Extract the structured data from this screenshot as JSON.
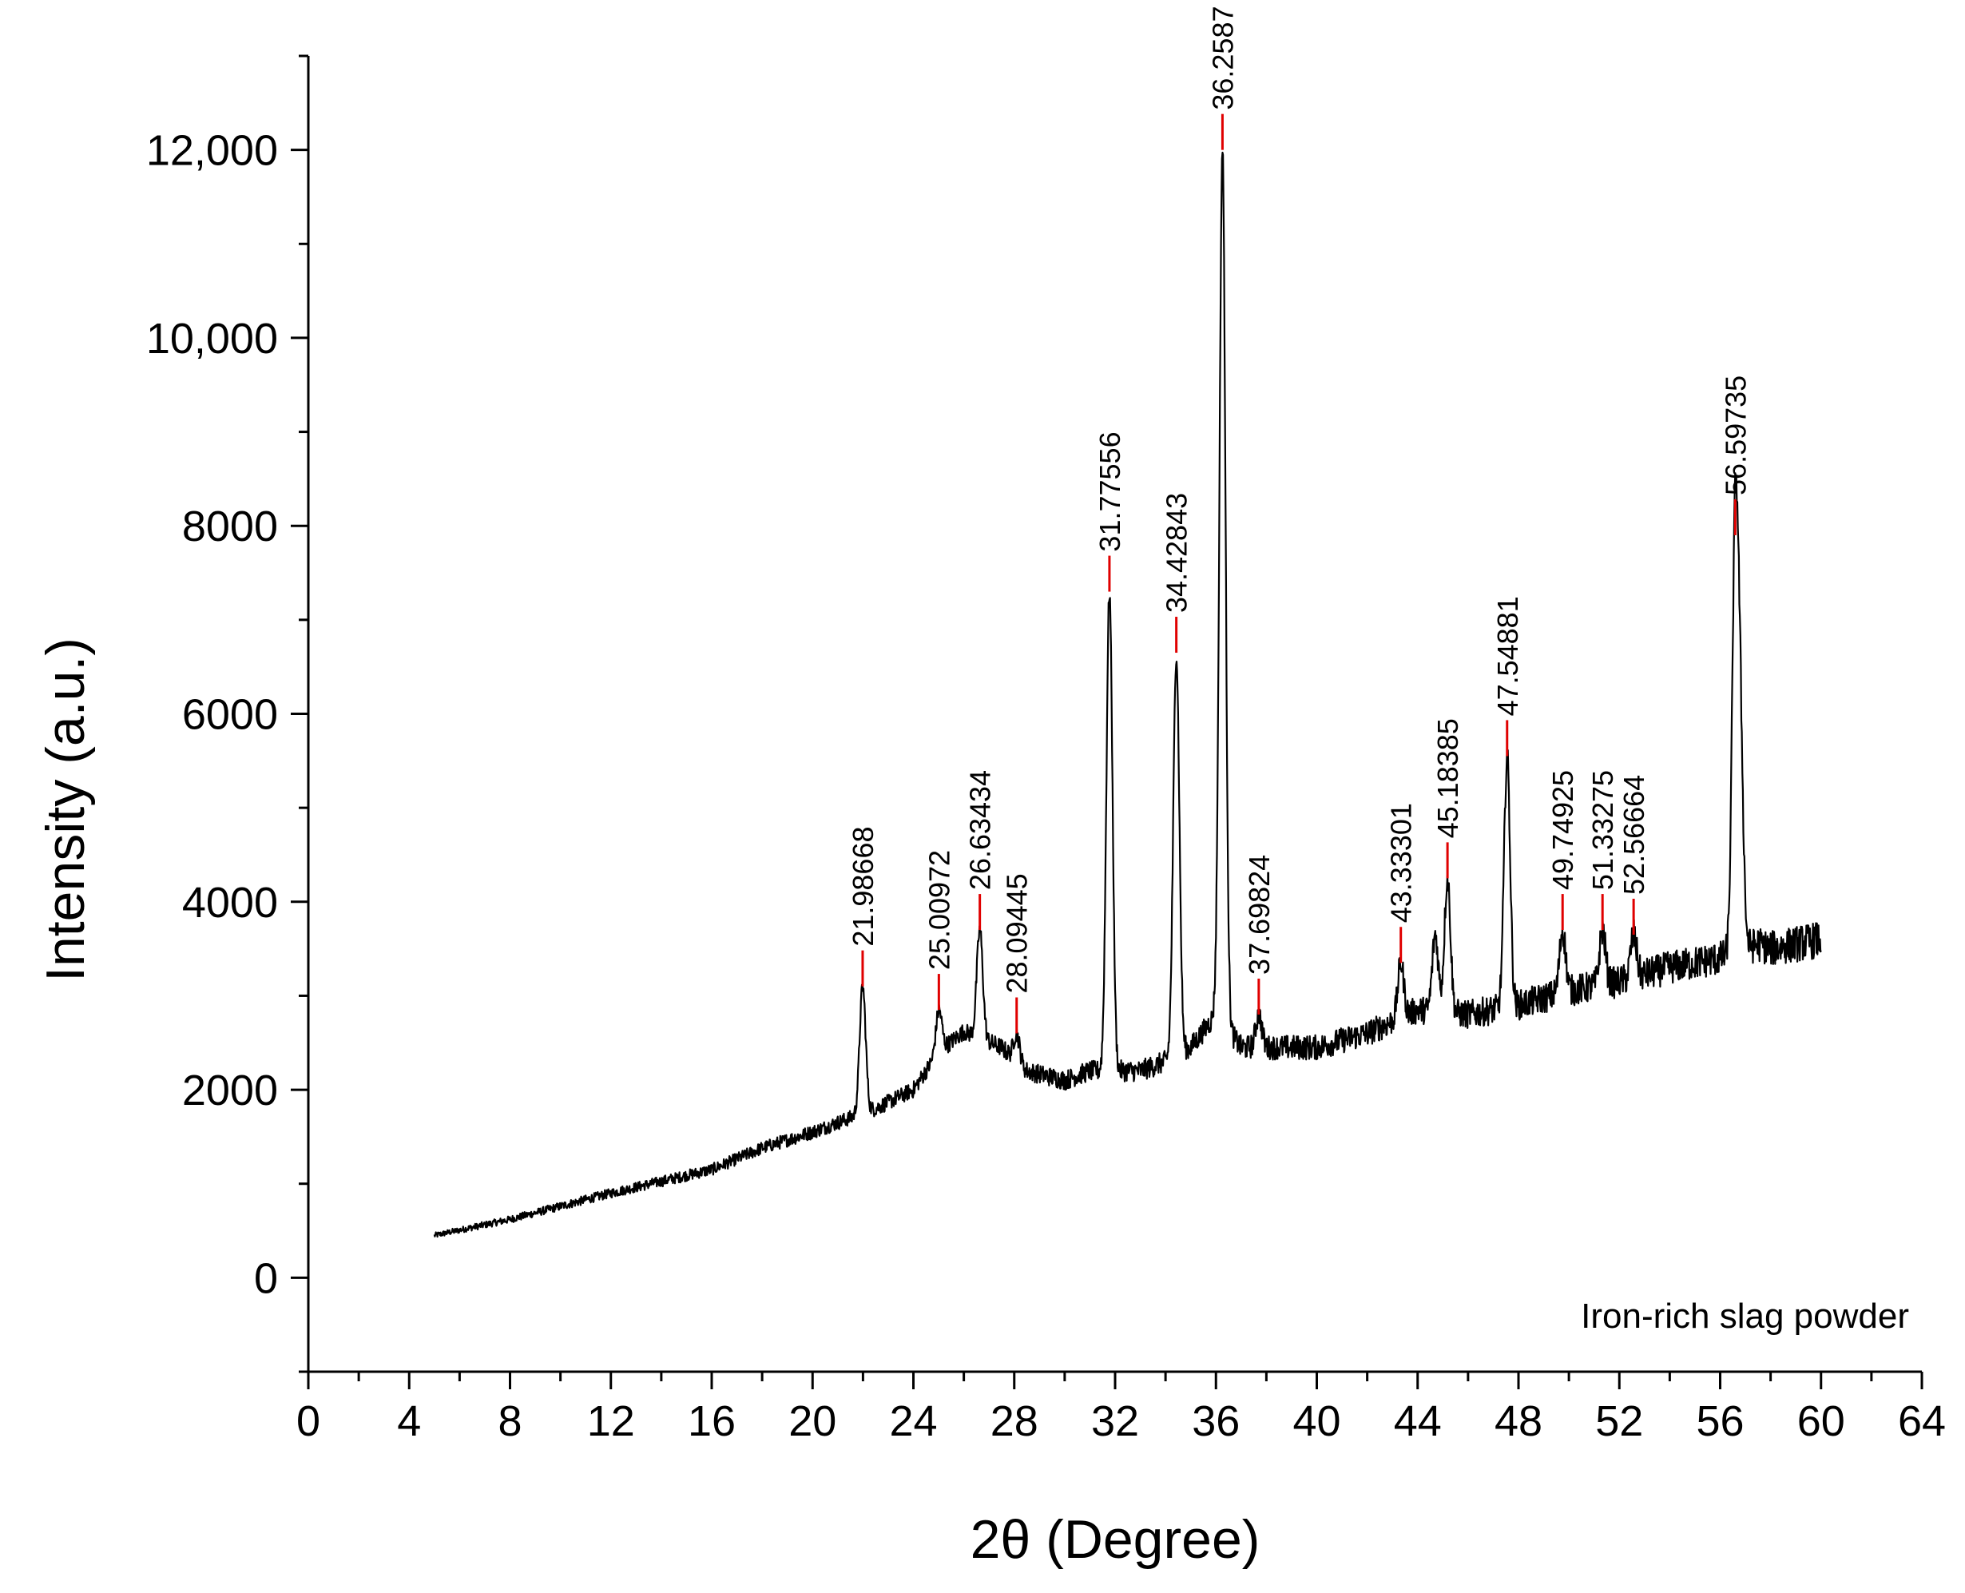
{
  "chart_data": {
    "type": "line",
    "title": "",
    "xlabel": "2θ (Degree)",
    "ylabel": "Intensity (a.u.)",
    "xlim": [
      0,
      64
    ],
    "ylim": [
      -1000,
      13000
    ],
    "x_ticks": [
      0,
      4,
      8,
      12,
      16,
      20,
      24,
      28,
      32,
      36,
      40,
      44,
      48,
      52,
      56,
      60,
      64
    ],
    "x_tick_labels": [
      "0",
      "4",
      "8",
      "12",
      "16",
      "20",
      "24",
      "28",
      "32",
      "36",
      "40",
      "44",
      "48",
      "52",
      "56",
      "60",
      "64"
    ],
    "y_ticks": [
      0,
      2000,
      4000,
      6000,
      8000,
      10000,
      12000
    ],
    "y_tick_labels": [
      "0",
      "2000",
      "4000",
      "6000",
      "8000",
      "10,000",
      "12,000"
    ],
    "grid": false,
    "annotation": "Iron-rich slag powder",
    "series": [
      {
        "name": "Iron-rich slag powder",
        "x_range": [
          5,
          60
        ],
        "baseline": [
          [
            5,
            450
          ],
          [
            8,
            620
          ],
          [
            12,
            900
          ],
          [
            16,
            1150
          ],
          [
            18,
            1380
          ],
          [
            20,
            1550
          ],
          [
            21.5,
            1700
          ],
          [
            22.5,
            1800
          ],
          [
            24,
            2000
          ],
          [
            25,
            2400
          ],
          [
            26,
            2620
          ],
          [
            27.5,
            2450
          ],
          [
            28.5,
            2200
          ],
          [
            30,
            2100
          ],
          [
            31,
            2200
          ],
          [
            33,
            2200
          ],
          [
            34,
            2300
          ],
          [
            35,
            2450
          ],
          [
            36,
            2800
          ],
          [
            37,
            2450
          ],
          [
            40,
            2450
          ],
          [
            42,
            2600
          ],
          [
            44,
            2850
          ],
          [
            46,
            2800
          ],
          [
            48,
            2900
          ],
          [
            50,
            3050
          ],
          [
            52,
            3150
          ],
          [
            54,
            3300
          ],
          [
            56,
            3400
          ],
          [
            57.5,
            3550
          ],
          [
            58,
            3500
          ],
          [
            60,
            3600
          ]
        ],
        "peaks": [
          {
            "x": 21.98668,
            "y": 3100,
            "label": "21.98668"
          },
          {
            "x": 25.00972,
            "y": 2850,
            "label": "25.00972"
          },
          {
            "x": 26.63434,
            "y": 3700,
            "label": "26.63434"
          },
          {
            "x": 28.09445,
            "y": 2600,
            "label": "28.09445"
          },
          {
            "x": 31.77556,
            "y": 7300,
            "label": "31.77556"
          },
          {
            "x": 34.42843,
            "y": 6650,
            "label": "34.42843"
          },
          {
            "x": 36.2587,
            "y": 12000,
            "label": "36.2587"
          },
          {
            "x": 37.69824,
            "y": 2800,
            "label": "37.69824"
          },
          {
            "x": 43.33301,
            "y": 3350,
            "label": "43.33301"
          },
          {
            "x": 45.18385,
            "y": 4250,
            "label": "45.18385"
          },
          {
            "x": 47.54881,
            "y": 5550,
            "label": "47.54881"
          },
          {
            "x": 49.74925,
            "y": 3700,
            "label": "49.74925"
          },
          {
            "x": 51.33275,
            "y": 3700,
            "label": "51.33275"
          },
          {
            "x": 52.56664,
            "y": 3650,
            "label": "52.56664"
          },
          {
            "x": 56.59735,
            "y": 7900,
            "label": "56.59735"
          }
        ],
        "extra_shoulders": [
          {
            "x": 44.7,
            "y": 3650
          },
          {
            "x": 56.8,
            "y": 5600
          }
        ]
      }
    ]
  },
  "colors": {
    "line": "#000000",
    "peak_marker": "#e00000",
    "axis": "#000000",
    "background": "#ffffff"
  }
}
